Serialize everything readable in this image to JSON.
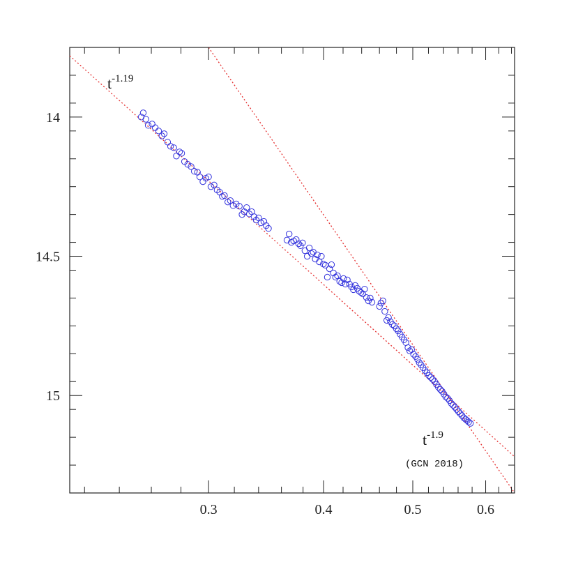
{
  "chart_data": {
    "type": "scatter",
    "title": "",
    "xlabel": "",
    "ylabel": "",
    "x_scale": "log",
    "y_inverted": true,
    "xlim": [
      0.212,
      0.645
    ],
    "ylim": [
      13.75,
      15.35
    ],
    "x_ticks": [
      0.3,
      0.4,
      0.5,
      0.6
    ],
    "x_tick_labels": [
      "0.3",
      "0.4",
      "0.5",
      "0.6"
    ],
    "y_ticks": [
      14,
      14.5,
      15
    ],
    "y_tick_labels": [
      "14",
      "14.5",
      "15"
    ],
    "grid": false,
    "marker_color": "#3333dd",
    "line_color": "#e53030",
    "series": [
      {
        "marker": "open-circle",
        "x": [
          0.2535,
          0.2548,
          0.2565,
          0.258,
          0.2605,
          0.2625,
          0.2648,
          0.267,
          0.2685,
          0.2708,
          0.2728,
          0.275,
          0.2768,
          0.279,
          0.2805,
          0.2825,
          0.2848,
          0.2872,
          0.2895,
          0.2918,
          0.2935,
          0.2958,
          0.298,
          0.3,
          0.3018,
          0.3042,
          0.3065,
          0.3085,
          0.3105,
          0.3122,
          0.3148,
          0.3168,
          0.319,
          0.3215,
          0.324,
          0.3262,
          0.328,
          0.33,
          0.3322,
          0.3342,
          0.3362,
          0.338,
          0.34,
          0.342,
          0.3445,
          0.3465,
          0.3485,
          0.365,
          0.367,
          0.369,
          0.3712,
          0.3735,
          0.3758,
          0.3775,
          0.3795,
          0.3818,
          0.384,
          0.386,
          0.388,
          0.3898,
          0.3918,
          0.3938,
          0.3958,
          0.3978,
          0.3998,
          0.4018,
          0.4038,
          0.406,
          0.408,
          0.41,
          0.4122,
          0.4142,
          0.4165,
          0.4185,
          0.4205,
          0.4225,
          0.4245,
          0.4268,
          0.429,
          0.431,
          0.433,
          0.4352,
          0.4372,
          0.4392,
          0.4412,
          0.4432,
          0.4452,
          0.4475,
          0.4495,
          0.4515,
          0.46,
          0.4618,
          0.464,
          0.4662,
          0.4685,
          0.4705,
          0.4728,
          0.4752,
          0.4775,
          0.4798,
          0.482,
          0.4845,
          0.4868,
          0.4892,
          0.4915,
          0.494,
          0.4962,
          0.4985,
          0.501,
          0.5035,
          0.506,
          0.5082,
          0.5105,
          0.513,
          0.5155,
          0.518,
          0.5205,
          0.523,
          0.5255,
          0.528,
          0.5305,
          0.533,
          0.5355,
          0.538,
          0.5405,
          0.543,
          0.5455,
          0.548,
          0.5505,
          0.553,
          0.5555,
          0.558,
          0.5605,
          0.563,
          0.5655,
          0.568,
          0.5705,
          0.5728,
          0.575,
          0.5775
        ],
        "y": [
          14.0,
          13.985,
          14.008,
          14.03,
          14.025,
          14.038,
          14.05,
          14.068,
          14.06,
          14.09,
          14.105,
          14.11,
          14.14,
          14.125,
          14.13,
          14.16,
          14.17,
          14.178,
          14.195,
          14.198,
          14.215,
          14.232,
          14.22,
          14.215,
          14.25,
          14.244,
          14.262,
          14.27,
          14.285,
          14.282,
          14.305,
          14.3,
          14.318,
          14.312,
          14.32,
          14.35,
          14.34,
          14.325,
          14.348,
          14.34,
          14.358,
          14.37,
          14.362,
          14.38,
          14.375,
          14.39,
          14.4,
          14.442,
          14.42,
          14.45,
          14.445,
          14.44,
          14.455,
          14.462,
          14.452,
          14.48,
          14.5,
          14.47,
          14.49,
          14.485,
          14.51,
          14.495,
          14.52,
          14.5,
          14.528,
          14.532,
          14.575,
          14.545,
          14.53,
          14.56,
          14.575,
          14.57,
          14.59,
          14.595,
          14.58,
          14.6,
          14.585,
          14.6,
          14.61,
          14.62,
          14.605,
          14.615,
          14.625,
          14.63,
          14.635,
          14.618,
          14.648,
          14.66,
          14.65,
          14.665,
          14.68,
          14.668,
          14.66,
          14.698,
          14.73,
          14.72,
          14.735,
          14.745,
          14.75,
          14.76,
          14.768,
          14.78,
          14.79,
          14.8,
          14.81,
          14.828,
          14.84,
          14.835,
          14.852,
          14.86,
          14.87,
          14.882,
          14.89,
          14.9,
          14.91,
          14.918,
          14.928,
          14.935,
          14.942,
          14.95,
          14.96,
          14.97,
          14.978,
          14.985,
          14.995,
          15.005,
          15.01,
          15.018,
          15.028,
          15.035,
          15.042,
          15.05,
          15.058,
          15.065,
          15.072,
          15.08,
          15.085,
          15.09,
          15.095,
          15.1
        ]
      }
    ],
    "fit_lines": [
      {
        "label_base": "t",
        "label_exp": "-1.19",
        "note": "",
        "x": [
          0.212,
          0.645
        ],
        "y": [
          13.78,
          15.22
        ]
      },
      {
        "label_base": "t",
        "label_exp": "-1.9",
        "note": "(GCN 2018)",
        "x": [
          0.3,
          0.645
        ],
        "y": [
          13.75,
          15.35
        ]
      }
    ]
  }
}
